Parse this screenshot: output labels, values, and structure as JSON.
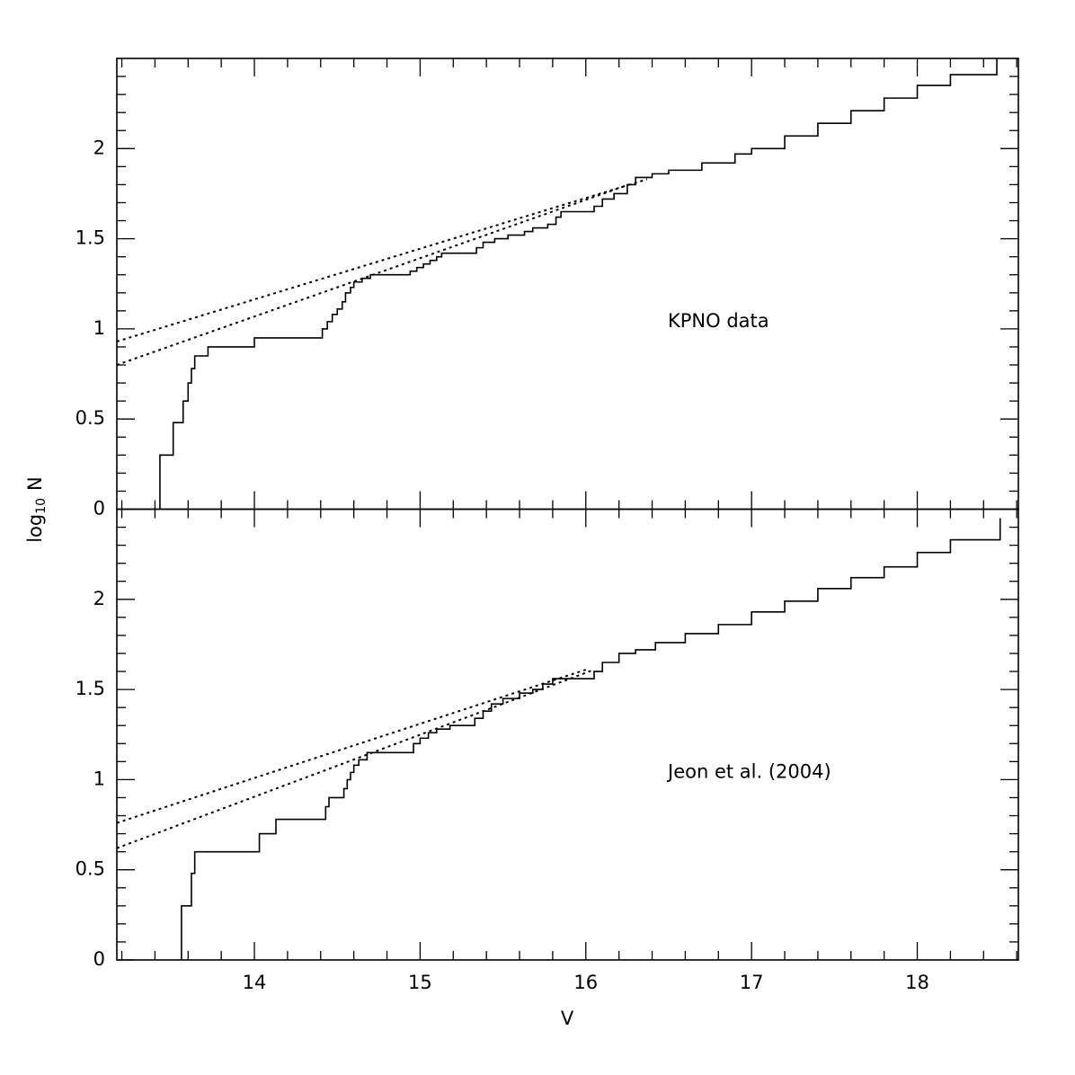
{
  "chart_data": {
    "type": "line",
    "xlabel": "V",
    "ylabel": [
      "log",
      "10",
      "N"
    ],
    "xlim": [
      13.17,
      18.61
    ],
    "xticks": [
      14,
      15,
      16,
      17,
      18
    ],
    "xminorticks": [
      13.2,
      13.4,
      13.6,
      13.8,
      14.2,
      14.4,
      14.6,
      14.8,
      15.2,
      15.4,
      15.6,
      15.8,
      16.2,
      16.4,
      16.6,
      16.8,
      17.2,
      17.4,
      17.6,
      17.8,
      18.2,
      18.4,
      18.6
    ],
    "yminorticks": [
      0.1,
      0.2,
      0.3,
      0.4,
      0.6,
      0.7,
      0.8,
      0.9,
      1.1,
      1.2,
      1.3,
      1.4,
      1.6,
      1.7,
      1.8,
      1.9,
      2.1,
      2.2,
      2.3,
      2.4
    ],
    "panels": [
      {
        "annotation": "KPNO data",
        "ylim": [
          0,
          2.5
        ],
        "yticks": [
          0,
          0.5,
          1,
          1.5,
          2
        ],
        "series": [
          {
            "color": "#000000",
            "style": "solid",
            "drawstyle": "steps-post",
            "x": [
              13.43,
              13.43,
              13.51,
              13.57,
              13.6,
              13.62,
              13.64,
              13.72,
              14.0,
              14.41,
              14.44,
              14.47,
              14.5,
              14.53,
              14.55,
              14.58,
              14.6,
              14.65,
              14.7,
              14.94,
              14.98,
              15.02,
              15.06,
              15.1,
              15.13,
              15.34,
              15.38,
              15.45,
              15.53,
              15.63,
              15.68,
              15.77,
              15.82,
              15.85,
              16.05,
              16.1,
              16.17,
              16.25,
              16.3,
              16.4,
              16.5,
              16.7,
              16.9,
              17.0,
              17.2,
              17.4,
              17.6,
              17.8,
              18.0,
              18.2,
              18.48
            ],
            "values": [
              0,
              0.3,
              0.48,
              0.6,
              0.7,
              0.78,
              0.85,
              0.9,
              0.95,
              1.0,
              1.04,
              1.08,
              1.11,
              1.15,
              1.2,
              1.23,
              1.26,
              1.28,
              1.3,
              1.32,
              1.34,
              1.36,
              1.38,
              1.4,
              1.42,
              1.45,
              1.48,
              1.5,
              1.52,
              1.54,
              1.56,
              1.58,
              1.62,
              1.65,
              1.68,
              1.72,
              1.75,
              1.8,
              1.84,
              1.86,
              1.88,
              1.92,
              1.97,
              2.0,
              2.07,
              2.14,
              2.21,
              2.28,
              2.35,
              2.41,
              2.5
            ]
          },
          {
            "color": "#000000",
            "style": "dotted",
            "x": [
              13.17,
              16.37
            ],
            "values": [
              0.93,
              1.83
            ]
          },
          {
            "color": "#000000",
            "style": "dotted",
            "x": [
              13.17,
              16.26
            ],
            "values": [
              0.8,
              1.8
            ]
          }
        ]
      },
      {
        "annotation": "Jeon et al. (2004)",
        "ylim": [
          0,
          2.5
        ],
        "yticks": [
          0,
          0.5,
          1,
          1.5,
          2
        ],
        "series": [
          {
            "color": "#000000",
            "style": "solid",
            "drawstyle": "steps-post",
            "x": [
              13.56,
              13.56,
              13.62,
              13.64,
              14.03,
              14.13,
              14.43,
              14.45,
              14.54,
              14.56,
              14.58,
              14.6,
              14.63,
              14.68,
              14.96,
              15.0,
              15.05,
              15.1,
              15.18,
              15.33,
              15.38,
              15.43,
              15.5,
              15.6,
              15.68,
              15.74,
              15.8,
              16.05,
              16.1,
              16.2,
              16.3,
              16.42,
              16.6,
              16.8,
              17.0,
              17.2,
              17.4,
              17.6,
              17.8,
              18.0,
              18.2,
              18.5
            ],
            "values": [
              0,
              0.3,
              0.48,
              0.6,
              0.7,
              0.78,
              0.85,
              0.9,
              0.95,
              1.0,
              1.04,
              1.08,
              1.11,
              1.15,
              1.2,
              1.23,
              1.26,
              1.28,
              1.3,
              1.34,
              1.38,
              1.42,
              1.45,
              1.48,
              1.5,
              1.53,
              1.56,
              1.6,
              1.65,
              1.7,
              1.72,
              1.76,
              1.81,
              1.86,
              1.93,
              1.99,
              2.06,
              2.12,
              2.18,
              2.26,
              2.33,
              2.45
            ]
          },
          {
            "color": "#000000",
            "style": "dotted",
            "x": [
              13.17,
              16.0
            ],
            "values": [
              0.76,
              1.61
            ]
          },
          {
            "color": "#000000",
            "style": "dotted",
            "x": [
              13.17,
              16.05
            ],
            "values": [
              0.62,
              1.61
            ]
          }
        ]
      }
    ]
  }
}
